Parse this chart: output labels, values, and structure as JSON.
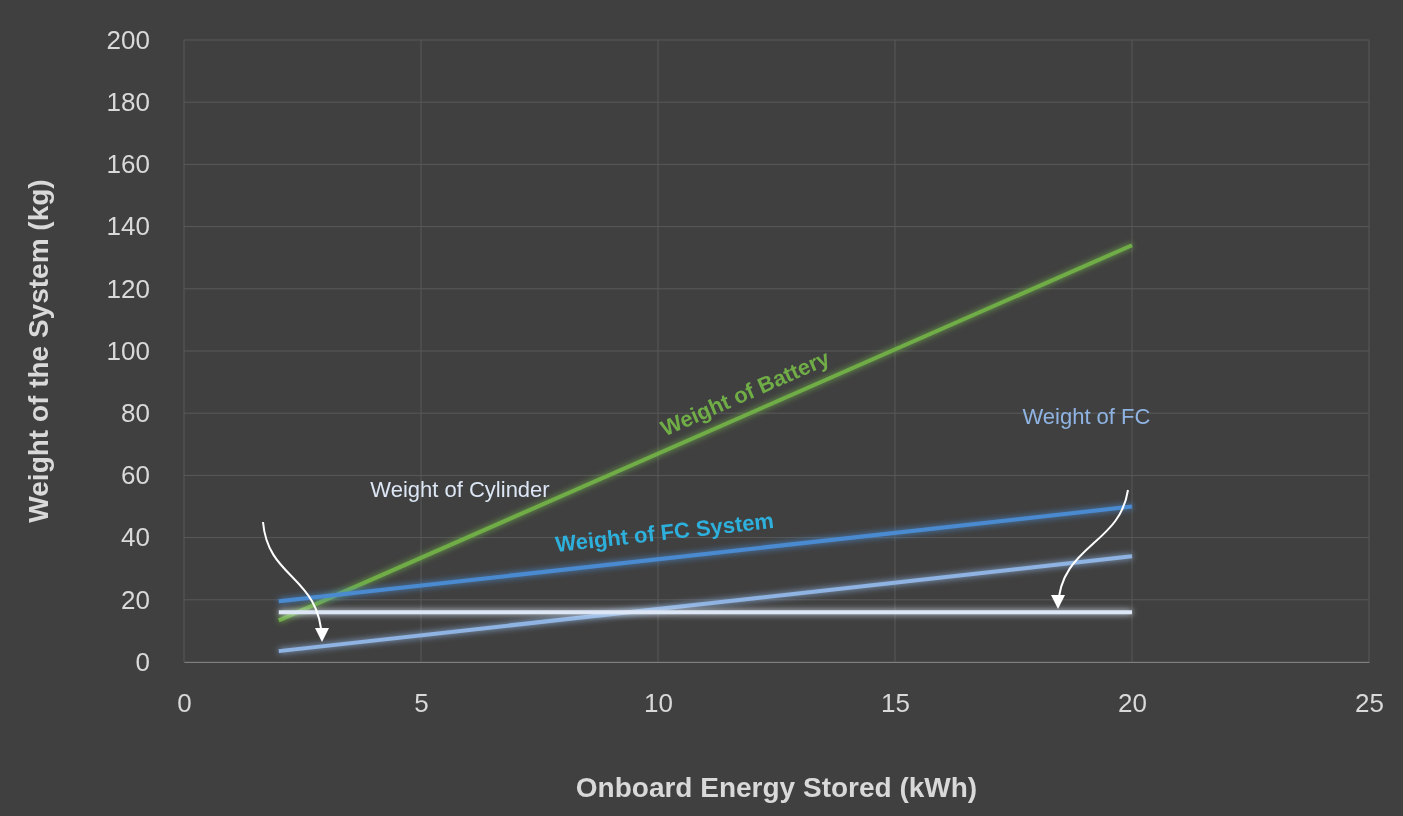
{
  "chart_data": {
    "type": "line",
    "xlabel": "Onboard Energy Stored (kWh)",
    "ylabel": "Weight of the System (kg)",
    "xlim": [
      0,
      25
    ],
    "xticks": [
      0,
      5,
      10,
      15,
      20,
      25
    ],
    "ylim": [
      0,
      200
    ],
    "yticks": [
      0,
      20,
      40,
      60,
      80,
      100,
      120,
      140,
      160,
      180,
      200
    ],
    "grid": true,
    "marker": "none",
    "line_style": "solid",
    "x": [
      2,
      20
    ],
    "series": [
      {
        "name": "Weight of Battery",
        "color": "#70ad47",
        "values": [
          13.4,
          134
        ]
      },
      {
        "name": "Weight of FC System",
        "color": "#4a8ad0",
        "values": [
          19.5,
          50
        ]
      },
      {
        "name": "Weight of FC",
        "color": "#8fb4e3",
        "values": [
          3.5,
          34
        ]
      },
      {
        "name": "Weight of Cylinder",
        "color": "#dce6f4",
        "values": [
          16,
          16
        ]
      }
    ]
  }
}
